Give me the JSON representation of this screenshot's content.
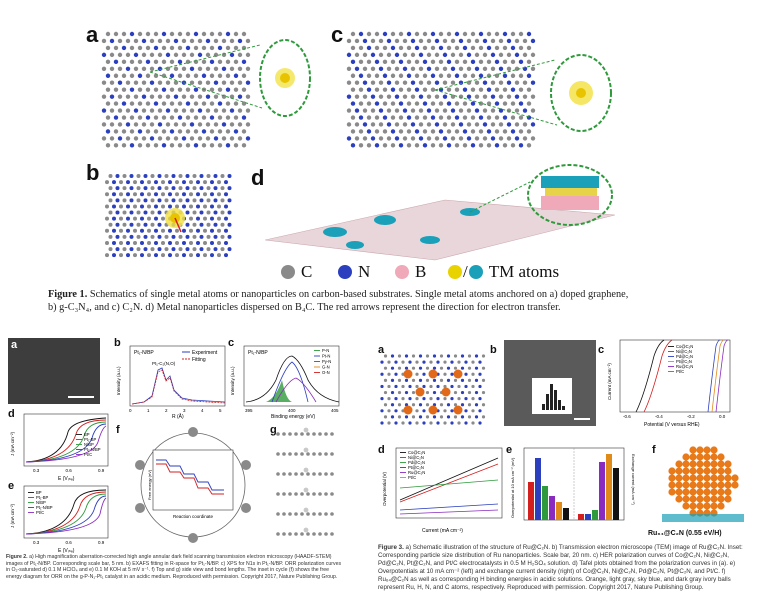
{
  "figure1": {
    "panels": [
      "a",
      "b",
      "c",
      "d"
    ],
    "legend": [
      {
        "symbol": "C",
        "color": "#8a8a8a"
      },
      {
        "symbol": "N",
        "color": "#2b3fbf"
      },
      {
        "symbol": "B",
        "color": "#f0a9b8"
      },
      {
        "symbol": "TM atoms",
        "color": "#e8d200",
        "color2": "#1aa0b8"
      }
    ],
    "caption_bold": "Figure 1.",
    "caption_line1": "Schematics of single metal atoms or nanoparticles on carbon-based substrates. Single metal atoms anchored on a) doped graphene,",
    "caption_line2": "b) g-C₃N₄, and c) C₂N. d) Metal nanoparticles dispersed on B₄C. The red arrows represent the direction for electron transfer."
  },
  "figure2": {
    "panels": [
      "a",
      "b",
      "c",
      "d",
      "e",
      "f",
      "g"
    ],
    "b_title": "Pt₁-N/BP",
    "b_legend": [
      "Experiment",
      "Fitting"
    ],
    "b_annot": "Pt₁-C₂(N,O)",
    "b_xlabel": "R (Å)",
    "b_ylabel": "Intensity (a.u.)",
    "b_xticks": [
      "0",
      "1",
      "2",
      "3",
      "4",
      "5"
    ],
    "c_title": "Pt₁-N/BP",
    "c_legend": [
      "P-N",
      "Pt-N",
      "Py-N",
      "G-N",
      "O-N"
    ],
    "c_xlabel": "Binding energy (eV)",
    "c_ylabel": "Intensity (a.u.)",
    "c_xticks": [
      "395",
      "400",
      "405"
    ],
    "d_legend": [
      "BP",
      "Pt₁-BP",
      "N/BP",
      "Pt₁-N/BP",
      "Pt/C"
    ],
    "d_xlabel": "E (Vᵣₕₑ)",
    "d_ylabel": "J (mA cm⁻²)",
    "d_xticks": [
      "0.3",
      "0.6",
      "0.9"
    ],
    "e_legend": [
      "BP",
      "Pt₁-BP",
      "N/BP",
      "Pt₁-N/BP",
      "Pt/C"
    ],
    "e_xlabel": "E (Vᵣₕₑ)",
    "e_ylabel": "J (mA cm⁻²)",
    "e_xticks": [
      "0.3",
      "0.6",
      "0.9"
    ],
    "f_xlabel": "Reaction coordinate",
    "f_ylabel": "Free energy (eV)",
    "caption_bold": "Figure 2.",
    "caption": "a) High magnification aberration-corrected high angle annular dark field scanning transmission electron microscopy (HAADF-STEM) images of Pt₁-N/BP. Corresponding scale bar, 5 nm. b) EXAFS fitting in R-space for Pt₁-N/BP. c) XPS for N1s in Pt₁-N/BP. ORR polarization curves in O₂-saturated d) 0.1 M HClO₄ and e) 0.1 M KOH at 5 mV s⁻¹. f) Top and g) side view and bond lengths. The inset in cycle (f) shows the free energy diagram for ORR on the g-P-N₁-Pt₁ catalyst in an acidic medium. Reproduced with permission. Copyright 2017, Nature Publishing Group."
  },
  "figure3": {
    "panels": [
      "a",
      "b",
      "c",
      "d",
      "e",
      "f"
    ],
    "c_legend": [
      "Co@C₂N",
      "Ni@C₂N",
      "Pd@C₂N",
      "Pt@C₂N",
      "Ru@C₂N",
      "Pt/C"
    ],
    "c_xlabel": "Potential (V versus RHE)",
    "c_ylabel": "Current (mA cm⁻²)",
    "c_xticks": [
      "-0.6",
      "-0.4",
      "-0.2",
      "0.0"
    ],
    "d_legend": [
      "Co@C₂N",
      "Ni@C₂N",
      "Pd@C₂N",
      "Pt@C₂N",
      "Ru@C₂N",
      "Pt/C"
    ],
    "d_xlabel": "Current (mA cm⁻²)",
    "d_ylabel": "Overpotential (V)",
    "e_ylabel": "Overpotential at 10 mA cm⁻² (mV)",
    "e_ylabel2": "Exchange current (mA cm⁻²)",
    "f_label": "Ru₆₄@C₂N (0.55 eV/H)",
    "caption_bold": "Figure 3.",
    "caption": "a) Schematic illustration of the structure of Ru@C₂N. b) Transmission electron microscope (TEM) image of Ru@C₂N. Inset: Corresponding particle size distribution of Ru nanoparticles. Scale bar, 20 nm. c) HER polarization curves of Co@C₂N, Ni@C₂N, Pd@C₂N, Pt@C₂N, and Pt/C electrocatalysts in 0.5 M H₂SO₄ solution. d) Tafel plots obtained from the polarization curves in (a). e) Overpotentials at 10 mA cm⁻² (left) and exchange current density (right) of Co@C₂N, Ni@C₂N, Pd@C₂N, Pt@C₂N, and Pt/C. f) Ru₆₄@C₂N as well as corresponding H binding energies in acidic solutions. Orange, light gray, sky blue, and dark gray ivory balls represent Ru, H, N, and C atoms, respectively. Reproduced with permission. Copyright 2017, Nature Publishing Group."
  }
}
